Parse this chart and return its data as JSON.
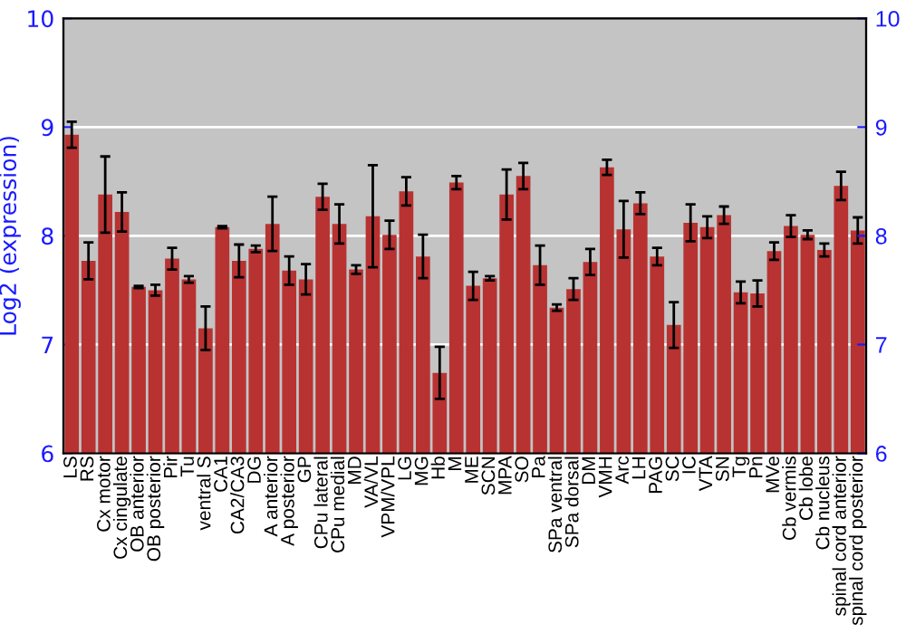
{
  "chart_data": {
    "type": "bar",
    "ylabel": "Log2 (expression)",
    "categories": [
      "LS",
      "RS",
      "Cx motor",
      "Cx cingulate",
      "OB anterior",
      "OB posterior",
      "Pir",
      "Tu",
      "ventral S",
      "CA1",
      "CA2/CA3",
      "DG",
      "A anterior",
      "A posterior",
      "GP",
      "CPu lateral",
      "CPu medial",
      "MD",
      "VA/VL",
      "VPM/VPL",
      "LG",
      "MG",
      "Hb",
      "M",
      "ME",
      "SCN",
      "MPA",
      "SO",
      "Pa",
      "SPa ventral",
      "SPa dorsal",
      "DM",
      "VMH",
      "Arc",
      "LH",
      "PAG",
      "SC",
      "IC",
      "VTA",
      "SN",
      "Tg",
      "Pn",
      "MVe",
      "Cb vermis",
      "Cb lobe",
      "Cb nucleus",
      "spinal cord anterior",
      "spinal cord posterior"
    ],
    "values": [
      8.93,
      7.77,
      8.38,
      8.22,
      7.53,
      7.5,
      7.79,
      7.6,
      7.15,
      8.08,
      7.77,
      7.88,
      8.11,
      7.68,
      7.6,
      8.36,
      8.11,
      7.69,
      8.18,
      8.01,
      8.41,
      7.81,
      6.74,
      8.49,
      7.54,
      7.61,
      8.38,
      8.55,
      7.73,
      7.34,
      7.51,
      7.76,
      8.63,
      8.06,
      8.3,
      7.81,
      7.18,
      8.12,
      8.08,
      8.19,
      7.48,
      7.47,
      7.86,
      8.09,
      8.01,
      7.87,
      8.46,
      8.05
    ],
    "errors": [
      0.12,
      0.17,
      0.35,
      0.18,
      0.01,
      0.05,
      0.1,
      0.03,
      0.2,
      0.01,
      0.15,
      0.03,
      0.25,
      0.13,
      0.14,
      0.12,
      0.18,
      0.04,
      0.47,
      0.13,
      0.13,
      0.2,
      0.24,
      0.06,
      0.13,
      0.02,
      0.23,
      0.12,
      0.18,
      0.03,
      0.1,
      0.12,
      0.07,
      0.26,
      0.1,
      0.08,
      0.21,
      0.17,
      0.1,
      0.08,
      0.1,
      0.12,
      0.08,
      0.1,
      0.04,
      0.06,
      0.13,
      0.12
    ],
    "color": "#b83232",
    "ylim": [
      6,
      10
    ],
    "yticks": [
      6,
      7,
      8,
      9,
      10
    ],
    "y2lim": [
      6,
      10
    ],
    "y2ticks": [
      6,
      7,
      8,
      9,
      10
    ],
    "grid": "y"
  }
}
